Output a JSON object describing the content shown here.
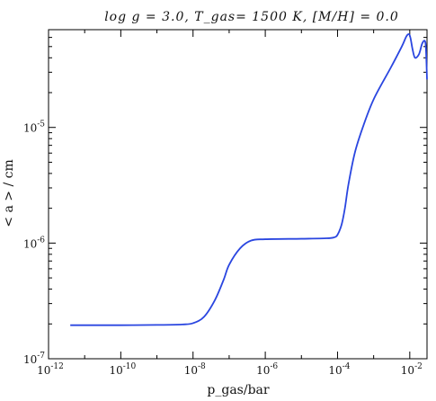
{
  "chart_data": {
    "type": "line",
    "title": "log g = 3.0, T_gas= 1500 K, [M/H] = 0.0",
    "xlabel": "p_gas/bar",
    "ylabel": "< a > / cm",
    "xscale": "log",
    "yscale": "log",
    "xlim": [
      1e-12,
      0.03
    ],
    "ylim": [
      1e-07,
      7e-05
    ],
    "grid": false,
    "x_ticks": [
      {
        "value": 1e-12,
        "label": "10^-12"
      },
      {
        "value": 1e-10,
        "label": "10^-10"
      },
      {
        "value": 1e-08,
        "label": "10^-8"
      },
      {
        "value": 1e-06,
        "label": "10^-6"
      },
      {
        "value": 0.0001,
        "label": "10^-4"
      },
      {
        "value": 0.01,
        "label": "10^-2"
      }
    ],
    "y_ticks": [
      {
        "value": 1e-07,
        "label": "10^-7"
      },
      {
        "value": 1e-06,
        "label": "10^-6"
      },
      {
        "value": 1e-05,
        "label": "10^-5"
      }
    ],
    "series_color": "#2a46e0",
    "series": [
      {
        "x": [
          4e-12,
          1e-11,
          1e-10,
          1e-09,
          5e-09,
          1e-08,
          2e-08,
          4e-08,
          7e-08,
          1e-07,
          2e-07,
          4e-07,
          1e-06,
          1e-05,
          5e-05,
          8e-05,
          0.0001,
          0.00013,
          0.00016,
          0.0002,
          0.0003,
          0.0005,
          0.001,
          0.003,
          0.006,
          0.008,
          0.0095,
          0.0105,
          0.012,
          0.014,
          0.018,
          0.022,
          0.026,
          0.028,
          0.03
        ],
        "y": [
          1.95e-07,
          1.95e-07,
          1.95e-07,
          1.96e-07,
          1.98e-07,
          2.03e-07,
          2.3e-07,
          3.2e-07,
          4.8e-07,
          6.5e-07,
          9e-07,
          1.05e-06,
          1.08e-06,
          1.09e-06,
          1.1e-06,
          1.12e-06,
          1.18e-06,
          1.45e-06,
          2e-06,
          3.2e-06,
          6e-06,
          1e-05,
          1.75e-05,
          3.3e-05,
          5e-05,
          6.1e-05,
          6.4e-05,
          5.9e-05,
          4.7e-05,
          4e-05,
          4.3e-05,
          5.3e-05,
          5.6e-05,
          4.8e-05,
          2.6e-05
        ]
      }
    ]
  }
}
